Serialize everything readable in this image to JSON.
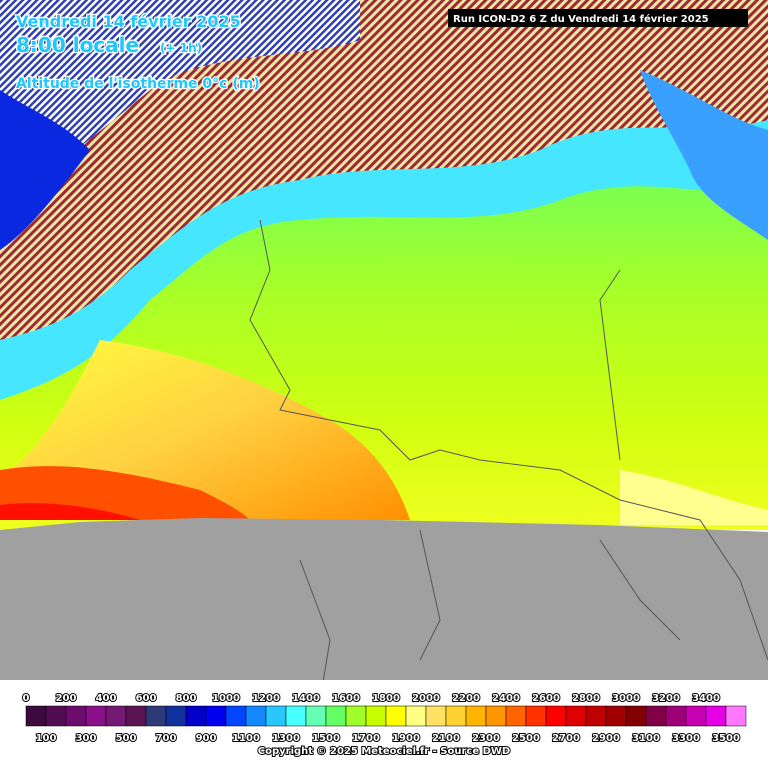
{
  "header": {
    "date": "Vendredi 14 février 2025",
    "time": "8:00 locale",
    "offset": "(+ 1h)",
    "parameter": "Altitude de l'isotherme 0°c (m)",
    "run": "Run ICON-D2 6 Z du Vendredi 14 février 2025"
  },
  "legend": {
    "levels": [
      {
        "value": 0,
        "color": "#3c0a3c"
      },
      {
        "value": 100,
        "color": "#520c52"
      },
      {
        "value": 200,
        "color": "#6e0c6e"
      },
      {
        "value": 300,
        "color": "#8a108a"
      },
      {
        "value": 400,
        "color": "#741a74"
      },
      {
        "value": 500,
        "color": "#5a1454"
      },
      {
        "value": 600,
        "color": "#2e3a78"
      },
      {
        "value": 700,
        "color": "#10309c"
      },
      {
        "value": 800,
        "color": "#0000c8"
      },
      {
        "value": 900,
        "color": "#0000ee"
      },
      {
        "value": 1000,
        "color": "#0046ff"
      },
      {
        "value": 1100,
        "color": "#1488ff"
      },
      {
        "value": 1200,
        "color": "#28c8ff"
      },
      {
        "value": 1300,
        "color": "#46ffff"
      },
      {
        "value": 1400,
        "color": "#64ffb4"
      },
      {
        "value": 1500,
        "color": "#64ff64"
      },
      {
        "value": 1600,
        "color": "#a0ff28"
      },
      {
        "value": 1700,
        "color": "#c8ff00"
      },
      {
        "value": 1800,
        "color": "#ffff00"
      },
      {
        "value": 1900,
        "color": "#ffff82"
      },
      {
        "value": 2000,
        "color": "#ffe164"
      },
      {
        "value": 2100,
        "color": "#ffd232"
      },
      {
        "value": 2200,
        "color": "#ffb400"
      },
      {
        "value": 2300,
        "color": "#ff9600"
      },
      {
        "value": 2400,
        "color": "#ff6400"
      },
      {
        "value": 2500,
        "color": "#ff3200"
      },
      {
        "value": 2600,
        "color": "#ff0000"
      },
      {
        "value": 2700,
        "color": "#e10000"
      },
      {
        "value": 2800,
        "color": "#c00000"
      },
      {
        "value": 2900,
        "color": "#a00000"
      },
      {
        "value": 3000,
        "color": "#820000"
      },
      {
        "value": 3100,
        "color": "#820046"
      },
      {
        "value": 3200,
        "color": "#a00078"
      },
      {
        "value": 3300,
        "color": "#c800b4"
      },
      {
        "value": 3400,
        "color": "#e600e6"
      },
      {
        "value": 3500,
        "color": "#ff78ff"
      }
    ]
  },
  "footer": {
    "copyright": "Copyright © 2025 Meteociel.fr - Source DWD"
  }
}
